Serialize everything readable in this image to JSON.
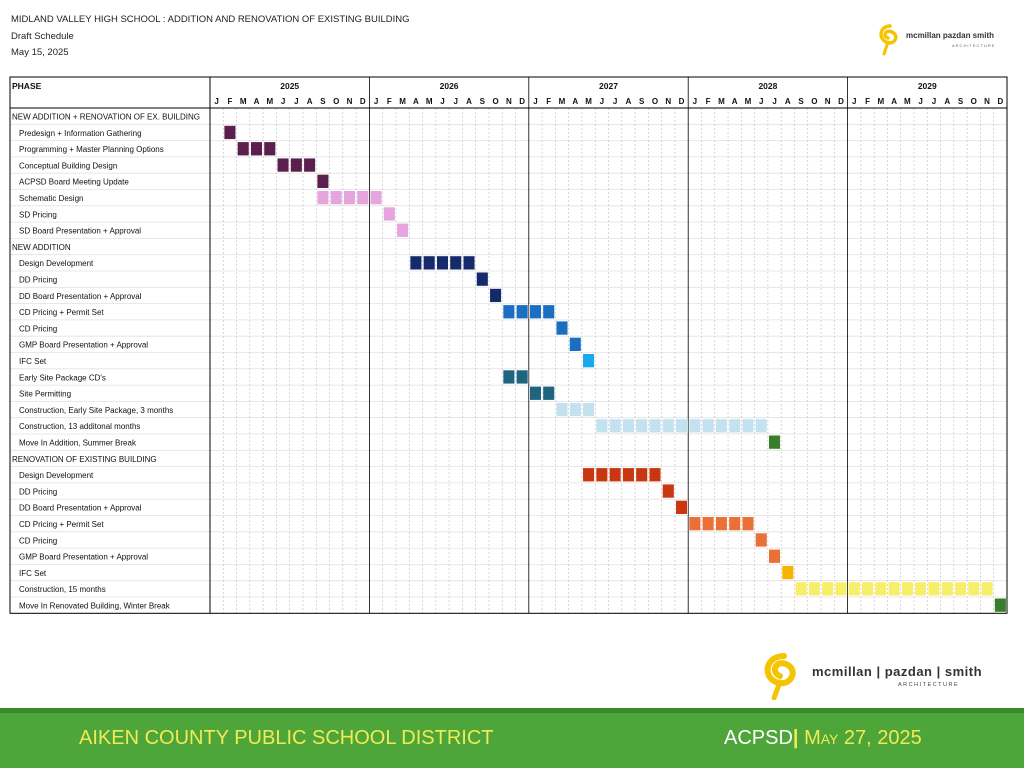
{
  "header": {
    "title": "MIDLAND VALLEY HIGH SCHOOL : ADDITION AND RENOVATION OF EXISTING BUILDING",
    "subtitle": "Draft Schedule",
    "date": "May 15, 2025"
  },
  "logo": {
    "name": "mcmillan pazdan smith",
    "sub": "ARCHITECTURE",
    "name_large": "mcmillan | pazdan | smith"
  },
  "footer": {
    "left": "AIKEN COUNTY PUBLIC SCHOOL DISTRICT",
    "right_org": "ACPSD",
    "right_sep": "|",
    "right_date": "May 27, 2025"
  },
  "chart_data": {
    "type": "gantt",
    "phase_header": "PHASE",
    "years": [
      "2025",
      "2026",
      "2027",
      "2028",
      "2029"
    ],
    "month_letters": [
      "J",
      "F",
      "M",
      "A",
      "M",
      "J",
      "J",
      "A",
      "S",
      "O",
      "N",
      "D"
    ],
    "rows": [
      {
        "label": "NEW ADDITION + RENOVATION OF EX. BUILDING",
        "section": true
      },
      {
        "label": "Predesign + Information Gathering",
        "start": "2025-02",
        "end": "2025-02",
        "color": "#5b1f4e"
      },
      {
        "label": "Programming + Master Planning Options",
        "start": "2025-03",
        "end": "2025-05",
        "color": "#5b1f4e"
      },
      {
        "label": "Conceptual Building Design",
        "start": "2025-06",
        "end": "2025-08",
        "color": "#5b1f4e"
      },
      {
        "label": "ACPSD Board Meeting Update",
        "start": "2025-09",
        "end": "2025-09",
        "color": "#5b1f4e"
      },
      {
        "label": "Schematic Design",
        "start": "2025-09",
        "end": "2026-01",
        "color": "#e7a5e0"
      },
      {
        "label": "SD Pricing",
        "start": "2026-02",
        "end": "2026-02",
        "color": "#e7a5e0"
      },
      {
        "label": "SD Board Presentation + Approval",
        "start": "2026-03",
        "end": "2026-03",
        "color": "#e7a5e0"
      },
      {
        "label": "NEW ADDITION",
        "section": true
      },
      {
        "label": "Design Development",
        "start": "2026-04",
        "end": "2026-08",
        "color": "#142a6b"
      },
      {
        "label": "DD Pricing",
        "start": "2026-09",
        "end": "2026-09",
        "color": "#142a6b"
      },
      {
        "label": "DD Board Presentation + Approval",
        "start": "2026-10",
        "end": "2026-10",
        "color": "#142a6b"
      },
      {
        "label": "CD Pricing + Permit Set",
        "start": "2026-11",
        "end": "2027-02",
        "color": "#1c6ec2"
      },
      {
        "label": "CD Pricing",
        "start": "2027-03",
        "end": "2027-03",
        "color": "#1c6ec2"
      },
      {
        "label": "GMP Board Presentation + Approval",
        "start": "2027-04",
        "end": "2027-04",
        "color": "#1c6ec2"
      },
      {
        "label": "IFC Set",
        "start": "2027-05",
        "end": "2027-05",
        "color": "#18a9ec"
      },
      {
        "label": "Early Site Package CD's",
        "start": "2026-11",
        "end": "2026-12",
        "color": "#1f6580"
      },
      {
        "label": "Site Permitting",
        "start": "2027-01",
        "end": "2027-02",
        "color": "#1f6580"
      },
      {
        "label": "Construction, Early Site Package, 3 months",
        "start": "2027-03",
        "end": "2027-05",
        "color": "#c3e2ef"
      },
      {
        "label": "Construction, 13 additonal months",
        "start": "2027-06",
        "end": "2028-06",
        "color": "#c3e2ef"
      },
      {
        "label": "Move In Addition, Summer Break",
        "start": "2028-07",
        "end": "2028-07",
        "color": "#3a7d2d"
      },
      {
        "label": "RENOVATION OF EXISTING BUILDING",
        "section": true
      },
      {
        "label": "Design Development",
        "start": "2027-05",
        "end": "2027-10",
        "color": "#c9360f"
      },
      {
        "label": "DD Pricing",
        "start": "2027-11",
        "end": "2027-11",
        "color": "#c9360f"
      },
      {
        "label": "DD Board Presentation + Approval",
        "start": "2027-12",
        "end": "2027-12",
        "color": "#c9360f"
      },
      {
        "label": "CD Pricing + Permit Set",
        "start": "2028-01",
        "end": "2028-05",
        "color": "#ea7038"
      },
      {
        "label": "CD Pricing",
        "start": "2028-06",
        "end": "2028-06",
        "color": "#ea7038"
      },
      {
        "label": "GMP Board Presentation + Approval",
        "start": "2028-07",
        "end": "2028-07",
        "color": "#ea7038"
      },
      {
        "label": "IFC Set",
        "start": "2028-08",
        "end": "2028-08",
        "color": "#f5b400"
      },
      {
        "label": "Construction, 15 months",
        "start": "2028-09",
        "end": "2029-11",
        "color": "#f7ef6a"
      },
      {
        "label": "Move In Renovated Building, Winter Break",
        "start": "2029-12",
        "end": "2029-12",
        "color": "#3a7d2d"
      }
    ]
  }
}
